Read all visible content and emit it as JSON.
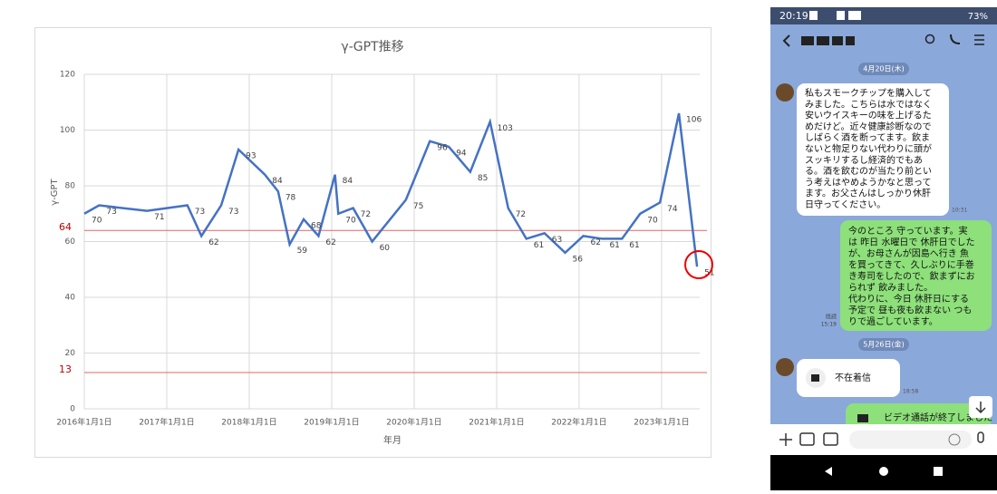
{
  "chart_data": {
    "type": "line",
    "title": "γ-GPT推移",
    "x_label": "年月",
    "y_label": "γ-GPT",
    "color": "#4472c4",
    "grid": true,
    "x": [
      2016.0,
      2016.18,
      2016.76,
      2017.25,
      2017.42,
      2017.66,
      2017.87,
      2018.19,
      2018.35,
      2018.49,
      2018.66,
      2018.84,
      2019.04,
      2019.08,
      2019.26,
      2019.49,
      2019.9,
      2020.19,
      2020.42,
      2020.68,
      2020.92,
      2021.14,
      2021.36,
      2021.58,
      2021.83,
      2022.05,
      2022.28,
      2022.52,
      2022.74,
      2022.98,
      2023.21,
      2023.43
    ],
    "values": [
      70,
      73,
      71,
      73,
      62,
      73,
      93,
      84,
      78,
      59,
      68,
      62,
      84,
      70,
      72,
      60,
      75,
      96,
      94,
      85,
      103,
      72,
      61,
      63,
      56,
      62,
      61,
      61,
      70,
      74,
      106,
      51
    ],
    "xlim": [
      2016,
      2023.55
    ],
    "xticks": [
      {
        "value": 2016,
        "label": "2016年1月1日"
      },
      {
        "value": 2017,
        "label": "2017年1月1日"
      },
      {
        "value": 2018,
        "label": "2018年1月1日"
      },
      {
        "value": 2019,
        "label": "2019年1月1日"
      },
      {
        "value": 2020,
        "label": "2020年1月1日"
      },
      {
        "value": 2021,
        "label": "2021年1月1日"
      },
      {
        "value": 2022,
        "label": "2022年1月1日"
      },
      {
        "value": 2023,
        "label": "2023年1月1日"
      }
    ],
    "ylim": [
      0,
      120
    ],
    "yticks": [
      0,
      20,
      40,
      60,
      80,
      100,
      120
    ],
    "reference_lines": [
      64,
      13
    ],
    "reference_color": "#e06666"
  },
  "phone": {
    "time": "20:19",
    "battery": "73%",
    "dates": [
      "4月20日(木)",
      "5月26日(金)"
    ],
    "messages": [
      {
        "lines": [
          "私もスモークチップを購入して",
          "みました。こちらは水ではなく",
          "安いウイスキーの味を上げるた",
          "めだけど。近々健康診断なので",
          "しばらく酒を断ってます。飲ま",
          "ないと物足りない代わりに頭が",
          "スッキリするし経済的でもあ",
          "る。酒を飲むのが当たり前とい",
          "う考えはやめようかなと思って",
          "ます。お父さんはしっかり休肝",
          "日守ってください。"
        ],
        "time": "10:31"
      },
      {
        "lines": [
          "今のところ 守っています。実",
          "は 昨日 水曜日で 休肝日でした",
          "が、お母さんが因島へ行き 魚",
          "を買ってきて、久しぶりに手巻",
          "き寿司をしたので、飲まずにお",
          "られず 飲みました。",
          "代わりに、今日 休肝日にする",
          "予定で 昼も夜も飲まない つも",
          "りで過ごしています。"
        ],
        "read": "既読",
        "time": "15:19"
      },
      {
        "lines": [
          "不在着信"
        ],
        "time": "18:58"
      },
      {
        "lines": [
          "ビデオ通話が終了しました"
        ]
      }
    ]
  }
}
